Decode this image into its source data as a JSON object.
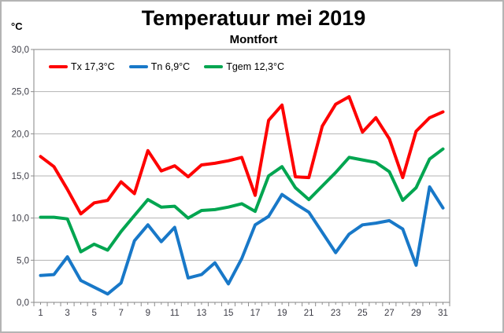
{
  "header": {
    "unit_label": "°C"
  },
  "chart_data": {
    "type": "line",
    "title": "Temperatuur mei 2019",
    "subtitle": "Montfort",
    "xlabel": "",
    "ylabel": "°C",
    "x": [
      1,
      2,
      3,
      4,
      5,
      6,
      7,
      8,
      9,
      10,
      11,
      12,
      13,
      14,
      15,
      16,
      17,
      18,
      19,
      20,
      21,
      22,
      23,
      24,
      25,
      26,
      27,
      28,
      29,
      30,
      31
    ],
    "xticklabels": [
      "1",
      "3",
      "5",
      "7",
      "9",
      "11",
      "13",
      "15",
      "17",
      "19",
      "21",
      "23",
      "25",
      "27",
      "29",
      "31"
    ],
    "yticklabels": [
      "30,0",
      "25,0",
      "20,0",
      "15,0",
      "10,0",
      "5,0",
      "0,0"
    ],
    "ylim": [
      0,
      30
    ],
    "ytick_step": 5,
    "grid": true,
    "legend_position": "top-left-inside",
    "series": [
      {
        "name": "Tx",
        "label": "Tx 17,3°C",
        "mean": "17,3°C",
        "color": "#fe0000",
        "values": [
          17.3,
          16.1,
          13.4,
          10.5,
          11.8,
          12.1,
          14.3,
          12.9,
          18.0,
          15.6,
          16.2,
          14.9,
          16.3,
          16.5,
          16.8,
          17.2,
          12.7,
          21.6,
          23.4,
          14.9,
          14.8,
          20.9,
          23.5,
          24.4,
          20.2,
          21.9,
          19.4,
          14.8,
          20.3,
          21.9,
          22.6
        ]
      },
      {
        "name": "Tn",
        "label": "Tn 6,9°C",
        "mean": "6,9°C",
        "color": "#1878c8",
        "values": [
          3.2,
          3.3,
          5.4,
          2.6,
          1.8,
          1.0,
          2.3,
          7.3,
          9.2,
          7.2,
          8.9,
          2.9,
          3.3,
          4.7,
          2.2,
          5.2,
          9.2,
          10.2,
          12.8,
          11.7,
          10.7,
          8.3,
          5.9,
          8.1,
          9.2,
          9.4,
          9.7,
          8.7,
          4.4,
          13.7,
          11.2
        ]
      },
      {
        "name": "Tgem",
        "label": "Tgem 12,3°C",
        "mean": "12,3°C",
        "color": "#00a550",
        "values": [
          10.1,
          10.1,
          9.9,
          6.0,
          6.9,
          6.2,
          8.4,
          10.3,
          12.2,
          11.3,
          11.4,
          10.0,
          10.9,
          11.0,
          11.3,
          11.7,
          10.8,
          15.0,
          16.1,
          13.6,
          12.2,
          13.8,
          15.4,
          17.2,
          16.9,
          16.6,
          15.5,
          12.1,
          13.6,
          17.0,
          18.2
        ]
      }
    ],
    "axis_colors": {
      "grid": "#b3b3b3",
      "border": "#9a9a9a",
      "tick": "#8c8c8c",
      "tick_label": "#3c3c46"
    }
  }
}
